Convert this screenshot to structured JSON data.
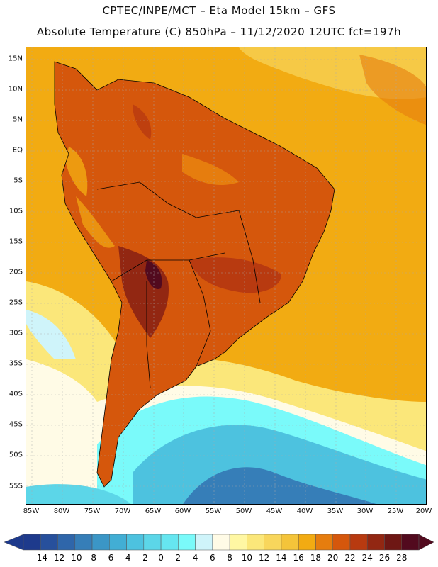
{
  "header": {
    "line1": "CPTEC/INPE/MCT –  Eta Model 15km – GFS",
    "line2": "Absolute Temperature (C) 850hPa – 11/12/2020 12UTC fct=197h"
  },
  "axes": {
    "lat_labels": [
      "15N",
      "10N",
      "5N",
      "EQ",
      "5S",
      "10S",
      "15S",
      "20S",
      "25S",
      "30S",
      "35S",
      "40S",
      "45S",
      "50S",
      "55S"
    ],
    "lon_labels": [
      "85W",
      "80W",
      "75W",
      "70W",
      "65W",
      "60W",
      "55W",
      "50W",
      "45W",
      "40W",
      "35W",
      "30W",
      "25W",
      "20W"
    ]
  },
  "colorbar": {
    "ticks": [
      "-14",
      "-12",
      "-10",
      "-8",
      "-6",
      "-4",
      "-2",
      "0",
      "2",
      "4",
      "6",
      "8",
      "10",
      "12",
      "14",
      "16",
      "18",
      "20",
      "22",
      "24",
      "26",
      "28"
    ],
    "colors": [
      "#1e3a8c",
      "#27509c",
      "#2f66aa",
      "#367eb8",
      "#3b96c6",
      "#42aed4",
      "#4dc2df",
      "#5cd6e8",
      "#66e6f0",
      "#7afafa",
      "#cff4fa",
      "#fffbe6",
      "#fff7a3",
      "#fbe77a",
      "#f8d65c",
      "#f4c43a",
      "#f2ab12",
      "#e67d0e",
      "#d5570c",
      "#b83a10",
      "#922712",
      "#6e1714",
      "#520a1e"
    ]
  }
}
